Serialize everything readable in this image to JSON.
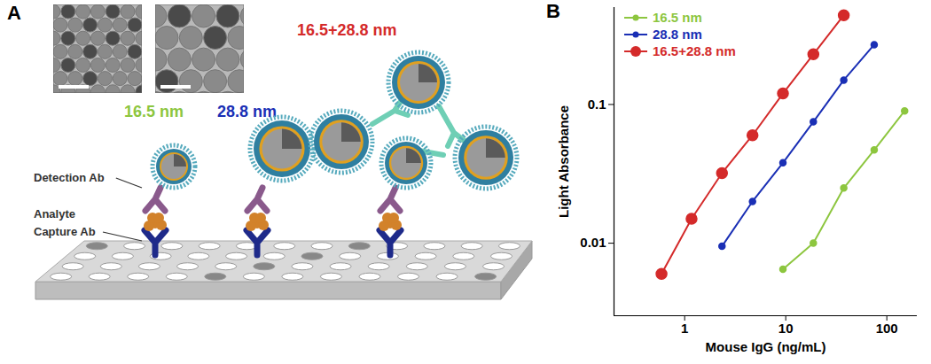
{
  "diagram": {
    "panel_label": "A",
    "header": {
      "text": "16.5+28.8 nm",
      "color": "#d42a2a"
    },
    "size_labels": [
      {
        "text": "16.5 nm",
        "color": "#8dc63f"
      },
      {
        "text": "28.8 nm",
        "color": "#1a2fb5"
      }
    ],
    "parts": [
      "Detection Ab",
      "Analyte",
      "Capture Ab"
    ]
  },
  "chart_data": {
    "type": "scatter",
    "panel_label": "B",
    "x_label": "Mouse IgG (ng/mL)",
    "y_label": "Light Absorbance",
    "log": true,
    "xlim": [
      0.2,
      200
    ],
    "ylim": [
      0.003,
      0.5
    ],
    "xticks": [
      1,
      10,
      100
    ],
    "yticks": [
      0.01,
      0.1
    ],
    "legend": "top-left",
    "series": [
      {
        "name": "16.5 nm",
        "color": "#8dc63f",
        "marker": "circle",
        "line_style": "solid",
        "x": [
          9.38,
          18.75,
          37.5,
          75,
          150
        ],
        "values": [
          0.0065,
          0.01,
          0.025,
          0.047,
          0.09
        ]
      },
      {
        "name": "28.8 nm",
        "color": "#1a2fb5",
        "marker": "circle",
        "line_style": "solid",
        "x": [
          2.34,
          4.69,
          9.38,
          18.75,
          37.5,
          75
        ],
        "values": [
          0.0095,
          0.02,
          0.038,
          0.075,
          0.15,
          0.27
        ]
      },
      {
        "name": "16.5+28.8 nm",
        "color": "#d42a2a",
        "marker": "circle",
        "line_style": "solid",
        "x": [
          0.59,
          1.17,
          2.34,
          4.69,
          9.38,
          18.75,
          37.5
        ],
        "values": [
          0.006,
          0.015,
          0.032,
          0.06,
          0.12,
          0.23,
          0.44
        ]
      }
    ]
  }
}
